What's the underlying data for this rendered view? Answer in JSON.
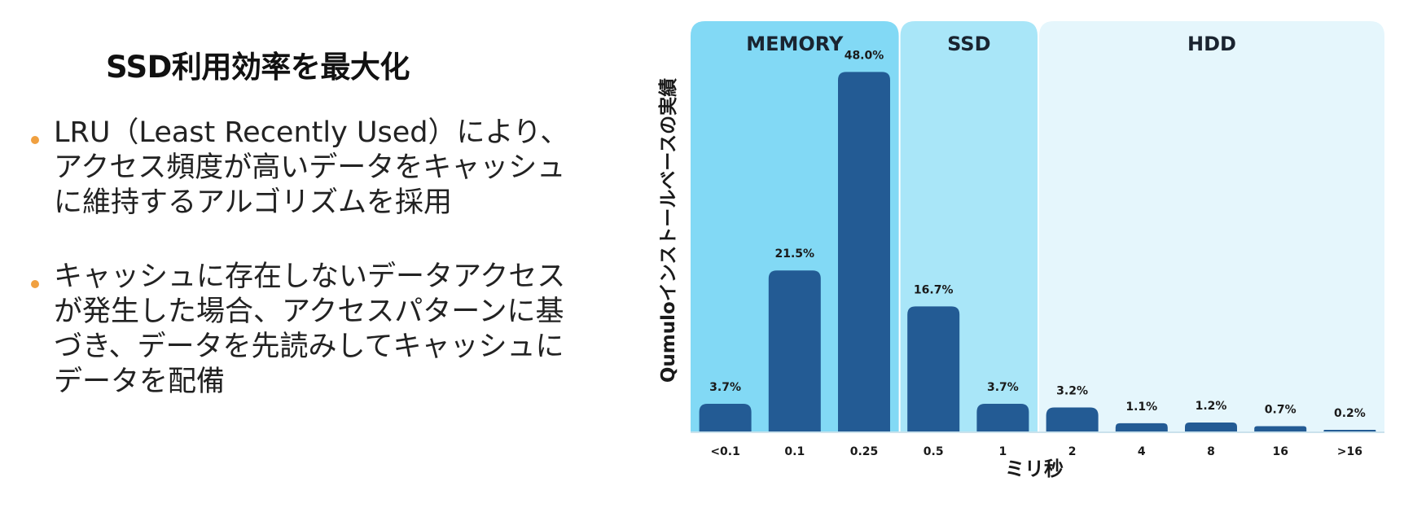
{
  "slide": {
    "title": "SSD利用効率を最大化",
    "bullets": [
      "LRU（Least Recently Used）により、アクセス頻度が高いデータをキャッシュに維持するアルゴリズムを採用",
      "キャッシュに存在しないデータアクセスが発生した場合、アクセスパターンに基づき、データを先読みしてキャッシュにデータを配備"
    ],
    "bullet_color": "#f0a040"
  },
  "chart_data": {
    "type": "bar",
    "categories": [
      "<0.1",
      "0.1",
      "0.25",
      "0.5",
      "1",
      "2",
      "4",
      "8",
      "16",
      ">16"
    ],
    "values": [
      3.7,
      21.5,
      48.0,
      16.7,
      3.7,
      3.2,
      1.1,
      1.2,
      0.7,
      0.2
    ],
    "data_labels": [
      "3.7%",
      "21.5%",
      "48.0%",
      "16.7%",
      "3.7%",
      "3.2%",
      "1.1%",
      "1.2%",
      "0.7%",
      "0.2%"
    ],
    "xlabel": "ミリ秒",
    "ylabel": "Qumuloインストールベースの実績",
    "ylim": [
      0,
      50
    ],
    "grid": false,
    "bar_color": "#235b94",
    "regions": [
      {
        "label": "MEMORY",
        "start": 0,
        "end": 2,
        "color": "#82d9f5"
      },
      {
        "label": "SSD",
        "start": 3,
        "end": 4,
        "color": "#a9e6f8"
      },
      {
        "label": "HDD",
        "start": 5,
        "end": 9,
        "color": "#e5f6fc"
      }
    ]
  }
}
